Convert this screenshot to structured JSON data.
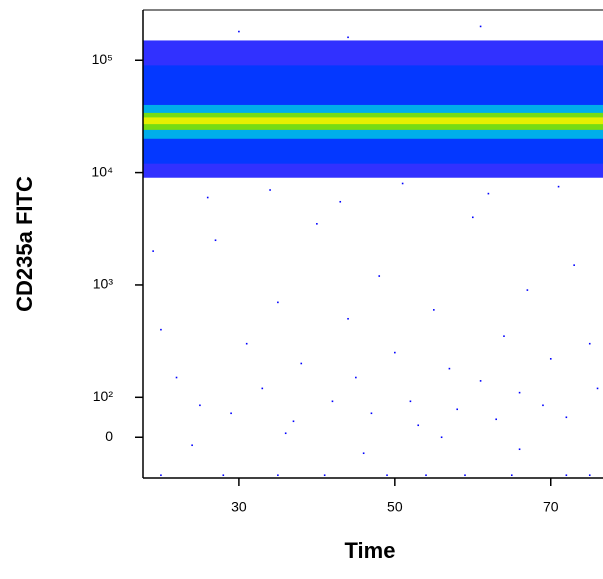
{
  "chart_data": {
    "type": "scatter",
    "x_label": "Time",
    "y_label": "CD235a FITC",
    "yscale": "biexponential",
    "xlim": [
      17.7,
      76.7
    ],
    "ylim": [
      -102,
      280000
    ],
    "xticks": [
      30,
      50,
      70
    ],
    "yticks": [
      0,
      {
        "value": 100,
        "label": "10²"
      },
      {
        "value": 1000,
        "label": "10³"
      },
      {
        "value": 10000,
        "label": "10⁴"
      },
      {
        "value": 100000,
        "label": "10⁵"
      }
    ],
    "density_bands": [
      {
        "from": 9000,
        "to": 150000,
        "color": "#2020ff"
      },
      {
        "from": 12000,
        "to": 90000,
        "color": "#0038ff"
      },
      {
        "from": 20000,
        "to": 40000,
        "color": "#00b8e8"
      },
      {
        "from": 24000,
        "to": 34000,
        "color": "#80e000"
      },
      {
        "from": 27000,
        "to": 31000,
        "color": "#f0f000"
      }
    ],
    "series": [
      {
        "color": "#0000ff",
        "x": [
          20,
          22,
          25,
          27,
          29,
          31,
          33,
          35,
          37,
          38,
          40,
          42,
          44,
          45,
          47,
          48,
          50,
          52,
          53,
          55,
          57,
          58,
          60,
          61,
          63,
          64,
          66,
          67,
          69,
          70,
          72,
          73,
          75,
          76,
          24,
          36,
          46,
          56,
          66,
          19,
          26,
          34,
          43,
          51,
          62,
          71,
          30,
          61,
          44,
          20,
          28,
          35,
          41,
          49,
          54,
          59,
          65,
          72,
          75
        ],
        "y": [
          400,
          150,
          80,
          2500,
          60,
          300,
          120,
          700,
          40,
          200,
          3500,
          90,
          500,
          150,
          60,
          1200,
          250,
          90,
          30,
          600,
          180,
          70,
          4000,
          140,
          45,
          350,
          110,
          900,
          80,
          220,
          50,
          1500,
          300,
          120,
          -20,
          10,
          -40,
          0,
          -30,
          2000,
          6000,
          7000,
          5500,
          8000,
          6500,
          7500,
          180000,
          200000,
          160000,
          -95,
          -95,
          -95,
          -95,
          -95,
          -95,
          -95,
          -95,
          -95,
          -95
        ]
      }
    ]
  }
}
